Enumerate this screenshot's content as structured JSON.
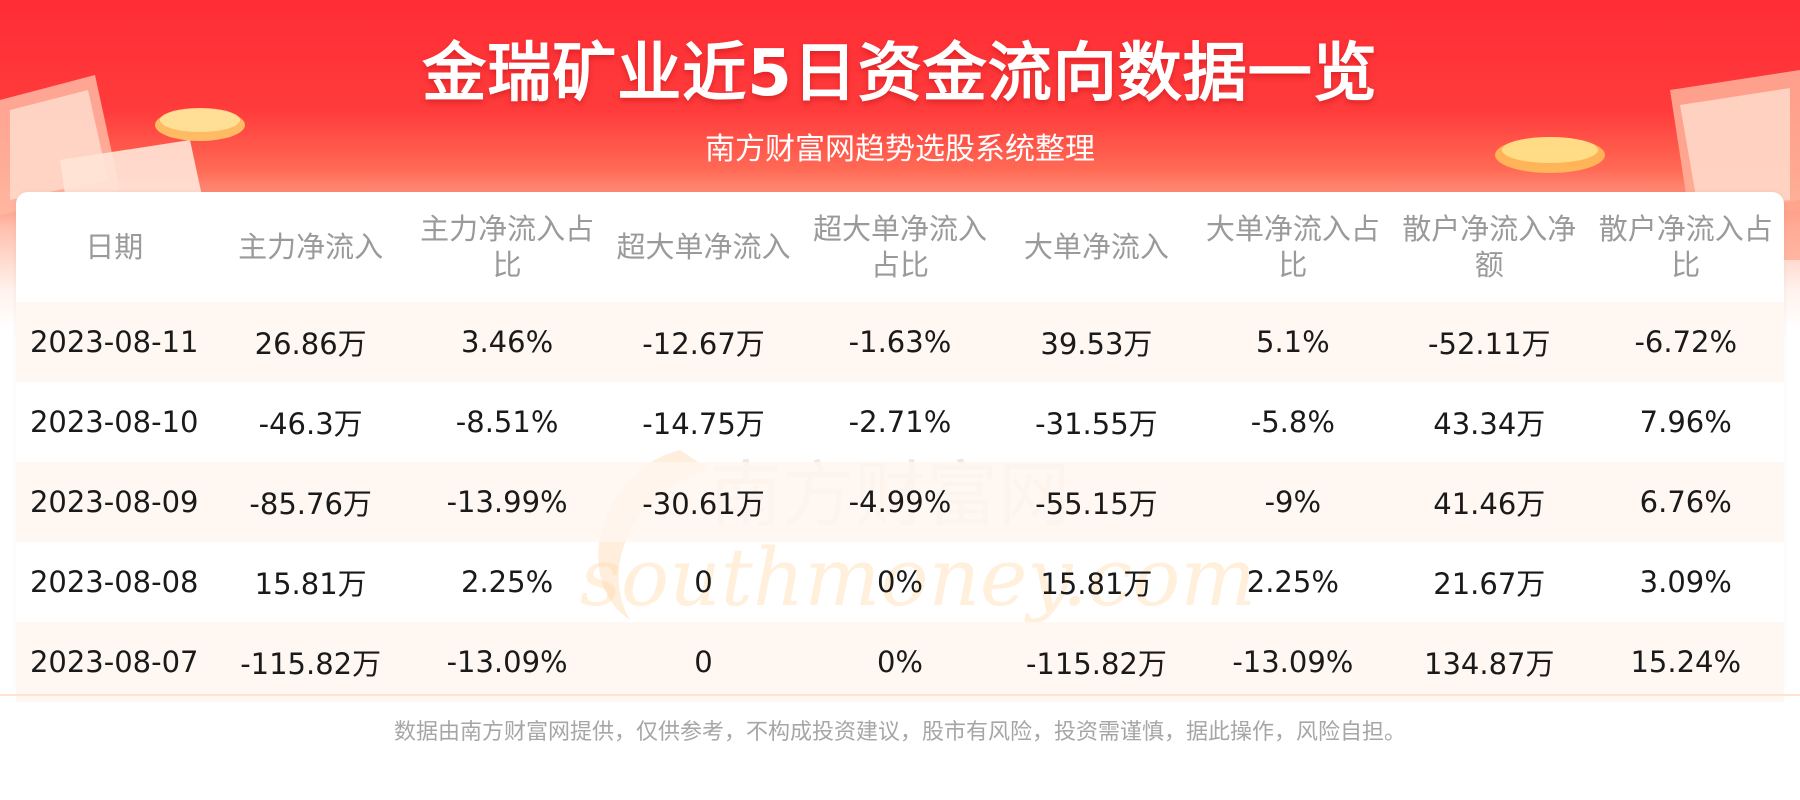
{
  "header": {
    "title": "金瑞矿业近5日资金流向数据一览",
    "subtitle": "南方财富网趋势选股系统整理"
  },
  "colors": {
    "banner_red": "#ff2d36",
    "header_text": "#9a9a9a",
    "row_stripe": "#fff6ee",
    "disclaimer_text": "#a6a6a6"
  },
  "watermark": {
    "cn": "南方财富网",
    "en": "southmoney.com"
  },
  "chart_data": {
    "type": "table",
    "columns": [
      "日期",
      "主力净流入",
      "主力净流入占比",
      "超大单净流入",
      "超大单净流入占比",
      "大单净流入",
      "大单净流入占比",
      "散户净流入净额",
      "散户净流入占比"
    ],
    "rows": [
      [
        "2023-08-11",
        "26.86万",
        "3.46%",
        "-12.67万",
        "-1.63%",
        "39.53万",
        "5.1%",
        "-52.11万",
        "-6.72%"
      ],
      [
        "2023-08-10",
        "-46.3万",
        "-8.51%",
        "-14.75万",
        "-2.71%",
        "-31.55万",
        "-5.8%",
        "43.34万",
        "7.96%"
      ],
      [
        "2023-08-09",
        "-85.76万",
        "-13.99%",
        "-30.61万",
        "-4.99%",
        "-55.15万",
        "-9%",
        "41.46万",
        "6.76%"
      ],
      [
        "2023-08-08",
        "15.81万",
        "2.25%",
        "0",
        "0%",
        "15.81万",
        "2.25%",
        "21.67万",
        "3.09%"
      ],
      [
        "2023-08-07",
        "-115.82万",
        "-13.09%",
        "0",
        "0%",
        "-115.82万",
        "-13.09%",
        "134.87万",
        "15.24%"
      ]
    ]
  },
  "footer": {
    "disclaimer": "数据由南方财富网提供，仅供参考，不构成投资建议，股市有风险，投资需谨慎，据此操作，风险自担。"
  }
}
